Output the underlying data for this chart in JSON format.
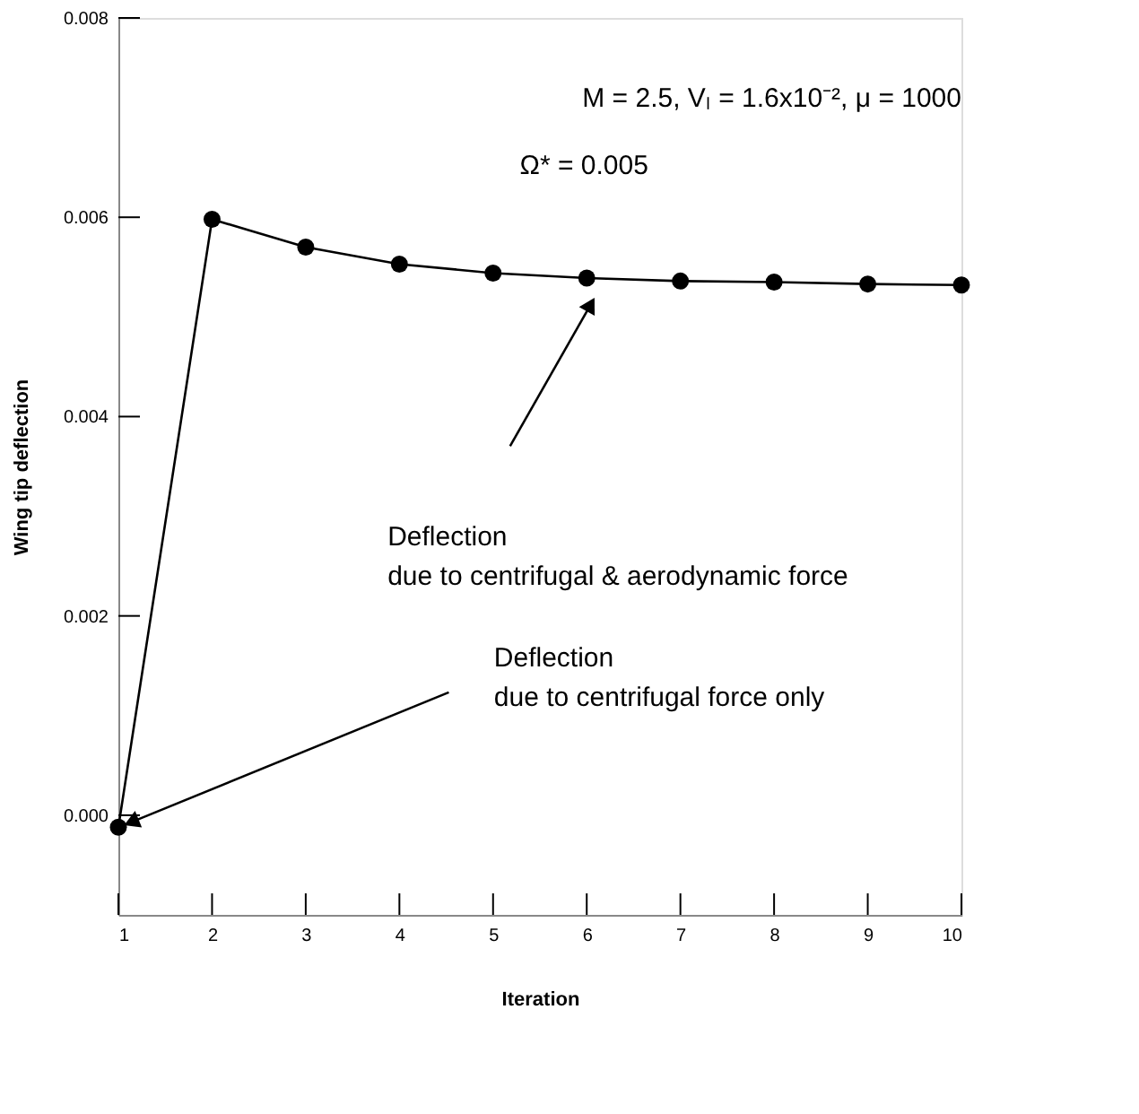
{
  "chart_data": {
    "type": "line",
    "xlabel": "Iteration",
    "ylabel": "Wing tip deflection",
    "x": [
      1,
      2,
      3,
      4,
      5,
      6,
      7,
      8,
      9,
      10
    ],
    "series": [
      {
        "color": "#000000",
        "values": [
          -0.00012,
          0.00598,
          0.0057,
          0.00553,
          0.00544,
          0.00539,
          0.00536,
          0.00535,
          0.00533,
          0.00532
        ]
      }
    ],
    "xlim": [
      1,
      10
    ],
    "xticks": [
      1,
      2,
      3,
      4,
      5,
      6,
      7,
      8,
      9,
      10
    ],
    "ylim": [
      -0.001,
      0.008
    ],
    "yticks": [
      {
        "value": 0,
        "label": "0.000"
      },
      {
        "value": 0.002,
        "label": "0.002"
      },
      {
        "value": 0.004,
        "label": "0.004"
      },
      {
        "value": 0.006,
        "label": "0.006"
      },
      {
        "value": 0.008,
        "label": "0.008"
      }
    ],
    "marker": "circle",
    "line_style": "solid",
    "grid": false,
    "annotations": [
      "M = 2.5, Vₗ = 1.6x10⁻², μ = 1000",
      "Ω* = 0.005",
      "Deflection\ndue to centrifugal & aerodynamic force",
      "Deflection\ndue to centrifugal force only"
    ]
  }
}
